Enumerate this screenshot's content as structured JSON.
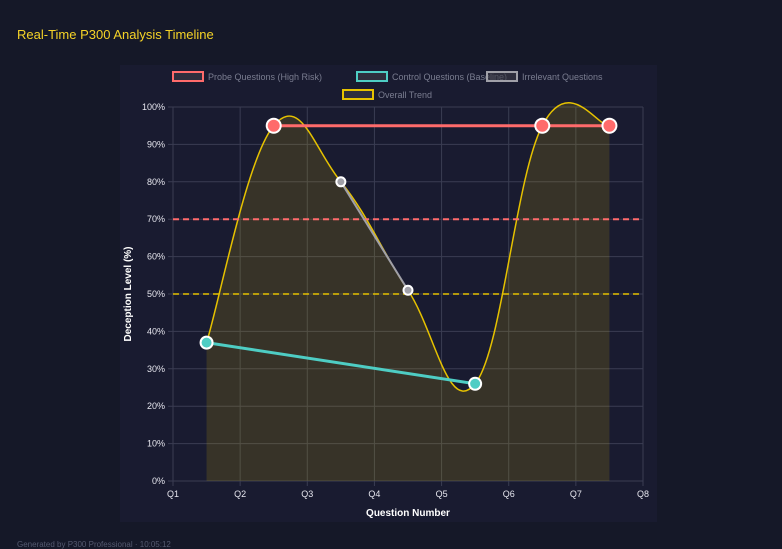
{
  "title": "Real-Time P300 Analysis Timeline",
  "footer": "Generated by P300 Professional · 10:05:12",
  "chart_data": {
    "type": "line",
    "categories": [
      "Q1",
      "Q2",
      "Q3",
      "Q4",
      "Q5",
      "Q6",
      "Q7",
      "Q8"
    ],
    "xlabel": "Question Number",
    "ylabel": "Deception Level (%)",
    "ylim": [
      0,
      100
    ],
    "yticks": [
      "0%",
      "10%",
      "20%",
      "30%",
      "40%",
      "50%",
      "60%",
      "70%",
      "80%",
      "90%",
      "100%"
    ],
    "grid": true,
    "legend": "top",
    "series": [
      {
        "name": "Probe Questions (High Risk)",
        "color": "#ff6b6b",
        "x": [
          2.5,
          6.5,
          7.5
        ],
        "values": [
          95,
          95,
          95
        ]
      },
      {
        "name": "Control Questions (Baseline)",
        "color": "#4ecdc4",
        "x": [
          1.5,
          5.5
        ],
        "values": [
          37,
          26
        ]
      },
      {
        "name": "Irrelevant Questions",
        "color": "#a0a0a8",
        "x": [
          3.5,
          4.5
        ],
        "values": [
          80,
          51
        ]
      },
      {
        "name": "Overall Trend",
        "color": "#e6c200",
        "x": [
          1.5,
          2.5,
          3.5,
          4.5,
          5.5,
          6.5,
          7.5
        ],
        "values": [
          37,
          95,
          80,
          51,
          26,
          95,
          95
        ]
      }
    ],
    "thresholds": [
      {
        "value": 70,
        "color": "#ff6b6b"
      },
      {
        "value": 50,
        "color": "#e6c200"
      }
    ]
  }
}
